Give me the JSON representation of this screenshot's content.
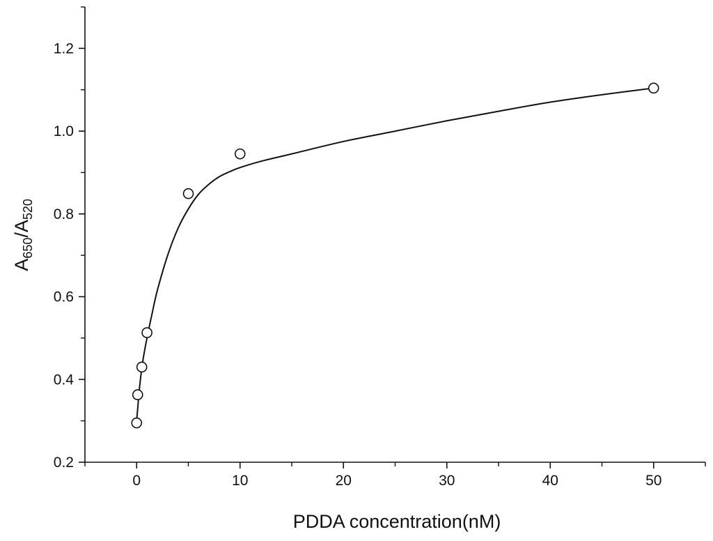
{
  "chart_data": {
    "type": "scatter",
    "title": "",
    "xlabel": "PDDA concentration(nM)",
    "ylabel": {
      "parts": [
        {
          "text": "A",
          "sub": false
        },
        {
          "text": "650",
          "sub": true
        },
        {
          "text": "/A",
          "sub": false
        },
        {
          "text": "520",
          "sub": true
        }
      ]
    },
    "xlim": [
      -5,
      55
    ],
    "ylim": [
      0.2,
      1.3
    ],
    "x_major_ticks": [
      0,
      10,
      20,
      30,
      40,
      50
    ],
    "x_minor_ticks": [
      -5,
      5,
      15,
      25,
      35,
      45,
      55
    ],
    "y_major_ticks": [
      0.2,
      0.4,
      0.6,
      0.8,
      1.0,
      1.2
    ],
    "y_minor_ticks": [
      0.3,
      0.5,
      0.7,
      0.9,
      1.1,
      1.3
    ],
    "x_tick_labels": [
      "0",
      "10",
      "20",
      "30",
      "40",
      "50"
    ],
    "y_tick_labels": [
      "0.2",
      "0.4",
      "0.6",
      "0.8",
      "1.0",
      "1.2"
    ],
    "grid": false,
    "legend": "none",
    "series": [
      {
        "marker": "open-circle",
        "x": [
          0,
          0.1,
          0.5,
          1,
          5,
          10,
          50
        ],
        "y": [
          0.295,
          0.363,
          0.43,
          0.513,
          0.849,
          0.945,
          1.104
        ]
      }
    ],
    "fit_curve": {
      "x": [
        0,
        0.3,
        0.6,
        1.0,
        1.5,
        2.0,
        3.0,
        4.0,
        5.0,
        6.0,
        7.0,
        8.0,
        9.0,
        10.0,
        12.0,
        15.0,
        20.0,
        25.0,
        30.0,
        35.0,
        40.0,
        45.0,
        50.0
      ],
      "y": [
        0.3,
        0.385,
        0.445,
        0.5,
        0.56,
        0.615,
        0.7,
        0.765,
        0.812,
        0.848,
        0.872,
        0.89,
        0.902,
        0.912,
        0.927,
        0.945,
        0.975,
        1.0,
        1.025,
        1.048,
        1.07,
        1.088,
        1.104
      ]
    }
  }
}
